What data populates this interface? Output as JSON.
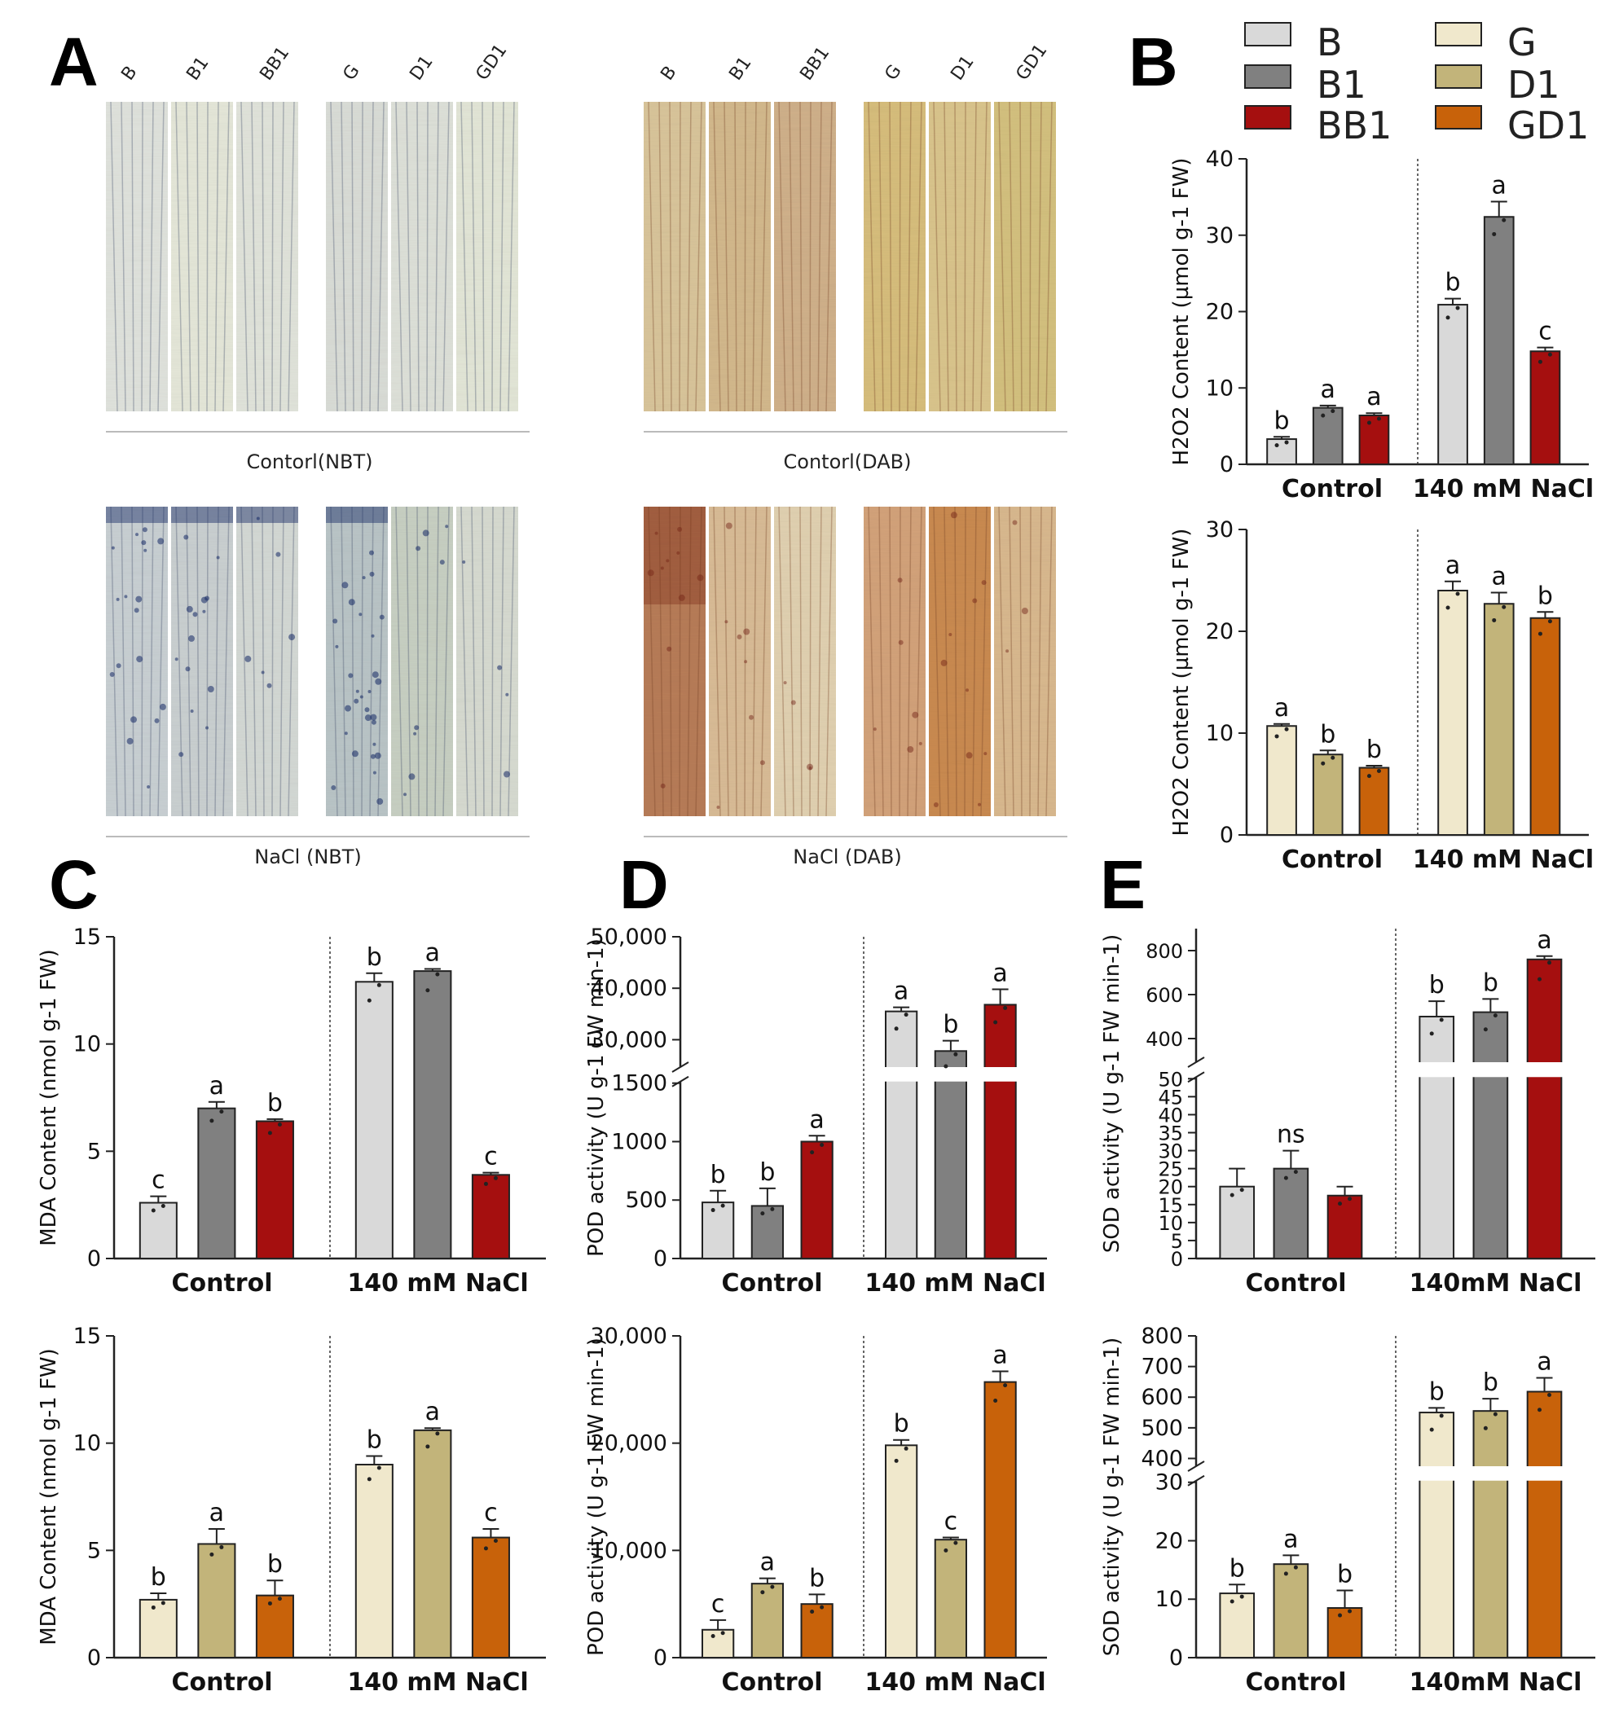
{
  "panel_letters": [
    "A",
    "B",
    "C",
    "D",
    "E"
  ],
  "staining": {
    "col_labels": [
      "B",
      "B1",
      "BB1",
      "G",
      "D1",
      "GD1"
    ],
    "captions": {
      "control_nbt": "Contorl(NBT)",
      "control_dab": "Contorl(DAB)",
      "nacl_nbt": "NaCl (NBT)",
      "nacl_dab": "NaCl (DAB)"
    }
  },
  "legend": [
    {
      "name": "B",
      "color": "#d9d9d9"
    },
    {
      "name": "B1",
      "color": "#808080"
    },
    {
      "name": "BB1",
      "color": "#a50f0f"
    },
    {
      "name": "G",
      "color": "#f0e8cc"
    },
    {
      "name": "D1",
      "color": "#c2b47a"
    },
    {
      "name": "GD1",
      "color": "#c8620a"
    }
  ],
  "chart_data": [
    {
      "id": "B_top",
      "type": "bar",
      "ylabel": "H2O2 Content (µmol g-1 FW)",
      "groups": [
        "Control",
        "140 mM NaCl"
      ],
      "series_names": [
        "B",
        "B1",
        "BB1"
      ],
      "values": [
        [
          3.3,
          7.4,
          6.4
        ],
        [
          20.9,
          32.4,
          14.8
        ]
      ],
      "errors": [
        [
          0.3,
          0.3,
          0.3
        ],
        [
          0.8,
          2.0,
          0.5
        ]
      ],
      "letters": [
        [
          "b",
          "a",
          "a"
        ],
        [
          "b",
          "a",
          "c"
        ]
      ],
      "ylim": [
        0,
        40
      ],
      "yticks": [
        0,
        10,
        20,
        30,
        40
      ]
    },
    {
      "id": "B_bottom",
      "type": "bar",
      "ylabel": "H2O2 Content (µmol g-1 FW)",
      "groups": [
        "Control",
        "140 mM NaCl"
      ],
      "series_names": [
        "G",
        "D1",
        "GD1"
      ],
      "values": [
        [
          10.7,
          7.9,
          6.6
        ],
        [
          24.0,
          22.7,
          21.3
        ]
      ],
      "errors": [
        [
          0.2,
          0.4,
          0.2
        ],
        [
          0.9,
          1.1,
          0.6
        ]
      ],
      "letters": [
        [
          "a",
          "b",
          "b"
        ],
        [
          "a",
          "a",
          "b"
        ]
      ],
      "ylim": [
        0,
        30
      ],
      "yticks": [
        0,
        10,
        20,
        30
      ]
    },
    {
      "id": "C_top",
      "type": "bar",
      "ylabel": "MDA Content (nmol g-1 FW)",
      "groups": [
        "Control",
        "140 mM NaCl"
      ],
      "series_names": [
        "B",
        "B1",
        "BB1"
      ],
      "values": [
        [
          2.6,
          7.0,
          6.4
        ],
        [
          12.9,
          13.4,
          3.9
        ]
      ],
      "errors": [
        [
          0.3,
          0.3,
          0.1
        ],
        [
          0.4,
          0.1,
          0.1
        ]
      ],
      "letters": [
        [
          "c",
          "a",
          "b"
        ],
        [
          "b",
          "a",
          "c"
        ]
      ],
      "ylim": [
        0,
        15
      ],
      "yticks": [
        0,
        5,
        10,
        15
      ]
    },
    {
      "id": "C_bottom",
      "type": "bar",
      "ylabel": "MDA Content (nmol g-1 FW)",
      "groups": [
        "Control",
        "140 mM NaCl"
      ],
      "series_names": [
        "G",
        "D1",
        "GD1"
      ],
      "values": [
        [
          2.7,
          5.3,
          2.9
        ],
        [
          9.0,
          10.6,
          5.6
        ]
      ],
      "errors": [
        [
          0.3,
          0.7,
          0.7
        ],
        [
          0.4,
          0.1,
          0.4
        ]
      ],
      "letters": [
        [
          "b",
          "a",
          "b"
        ],
        [
          "b",
          "a",
          "c"
        ]
      ],
      "ylim": [
        0,
        15
      ],
      "yticks": [
        0,
        5,
        10,
        15
      ]
    },
    {
      "id": "D_top",
      "type": "bar",
      "ylabel": "POD activity (U g-1 FW min-1)",
      "groups": [
        "Control",
        "140 mM NaCl"
      ],
      "series_names": [
        "B",
        "B1",
        "BB1"
      ],
      "values": [
        [
          480,
          450,
          1000
        ],
        [
          35500,
          27800,
          36800
        ]
      ],
      "errors": [
        [
          100,
          150,
          50
        ],
        [
          800,
          2000,
          3000
        ]
      ],
      "letters": [
        [
          "b",
          "b",
          "a"
        ],
        [
          "a",
          "b",
          "a"
        ]
      ],
      "broken_axis": {
        "lower": [
          0,
          1500
        ],
        "upper": [
          25000,
          50000
        ],
        "lower_ticks": [
          0,
          500,
          1000,
          1500
        ],
        "upper_ticks": [
          30000,
          40000,
          50000
        ],
        "lower_tick_labels": [
          "0",
          "500",
          "1000",
          "1500"
        ],
        "upper_tick_labels": [
          "30,000",
          "40,000",
          "50,000"
        ]
      }
    },
    {
      "id": "D_bottom",
      "type": "bar",
      "ylabel": "POD activity (U g-1 FW min-1)",
      "groups": [
        "Control",
        "140 mM NaCl"
      ],
      "series_names": [
        "G",
        "D1",
        "GD1"
      ],
      "values": [
        [
          2600,
          6900,
          5000
        ],
        [
          19800,
          11000,
          25700
        ]
      ],
      "errors": [
        [
          900,
          500,
          900
        ],
        [
          500,
          200,
          1000
        ]
      ],
      "letters": [
        [
          "c",
          "a",
          "b"
        ],
        [
          "b",
          "c",
          "a"
        ]
      ],
      "ylim": [
        0,
        30000
      ],
      "yticks": [
        0,
        10000,
        20000,
        30000
      ],
      "ytick_labels": [
        "0",
        "10,000",
        "20,000",
        "30,000"
      ]
    },
    {
      "id": "E_top",
      "type": "bar",
      "ylabel": "SOD activity (U g-1 FW min-1)",
      "groups": [
        "Control",
        "140mM NaCl"
      ],
      "series_names": [
        "B",
        "B1",
        "BB1"
      ],
      "values": [
        [
          20,
          25,
          17.5
        ],
        [
          500,
          520,
          760
        ]
      ],
      "errors": [
        [
          5,
          5,
          2.5
        ],
        [
          70,
          60,
          15
        ]
      ],
      "letters": [
        [
          "",
          "ns",
          ""
        ],
        [
          "b",
          "b",
          "a"
        ]
      ],
      "broken_axis": {
        "lower": [
          0,
          50
        ],
        "upper": [
          300,
          900
        ],
        "lower_ticks": [
          0,
          5,
          10,
          15,
          20,
          25,
          30,
          35,
          40,
          45,
          50
        ],
        "upper_ticks": [
          400,
          600,
          800
        ],
        "lower_tick_labels": [
          "0",
          "5",
          "10",
          "15",
          "20",
          "25",
          "30",
          "35",
          "40",
          "45",
          "50"
        ],
        "upper_tick_labels": [
          "400",
          "600",
          "800"
        ]
      }
    },
    {
      "id": "E_bottom",
      "type": "bar",
      "ylabel": "SOD activity (U g-1 FW min-1)",
      "groups": [
        "Control",
        "140mM NaCl"
      ],
      "series_names": [
        "G",
        "D1",
        "GD1"
      ],
      "values": [
        [
          11,
          16,
          8.5
        ],
        [
          550,
          555,
          618
        ]
      ],
      "errors": [
        [
          1.5,
          1.5,
          3
        ],
        [
          15,
          40,
          45
        ]
      ],
      "letters": [
        [
          "b",
          "a",
          "b"
        ],
        [
          "b",
          "b",
          "a"
        ]
      ],
      "broken_axis": {
        "lower": [
          0,
          30
        ],
        "upper": [
          380,
          800
        ],
        "lower_ticks": [
          0,
          10,
          20,
          30
        ],
        "upper_ticks": [
          400,
          500,
          600,
          700,
          800
        ],
        "lower_tick_labels": [
          "0",
          "10",
          "20",
          "30"
        ],
        "upper_tick_labels": [
          "400",
          "500",
          "600",
          "700",
          "800"
        ]
      }
    }
  ]
}
